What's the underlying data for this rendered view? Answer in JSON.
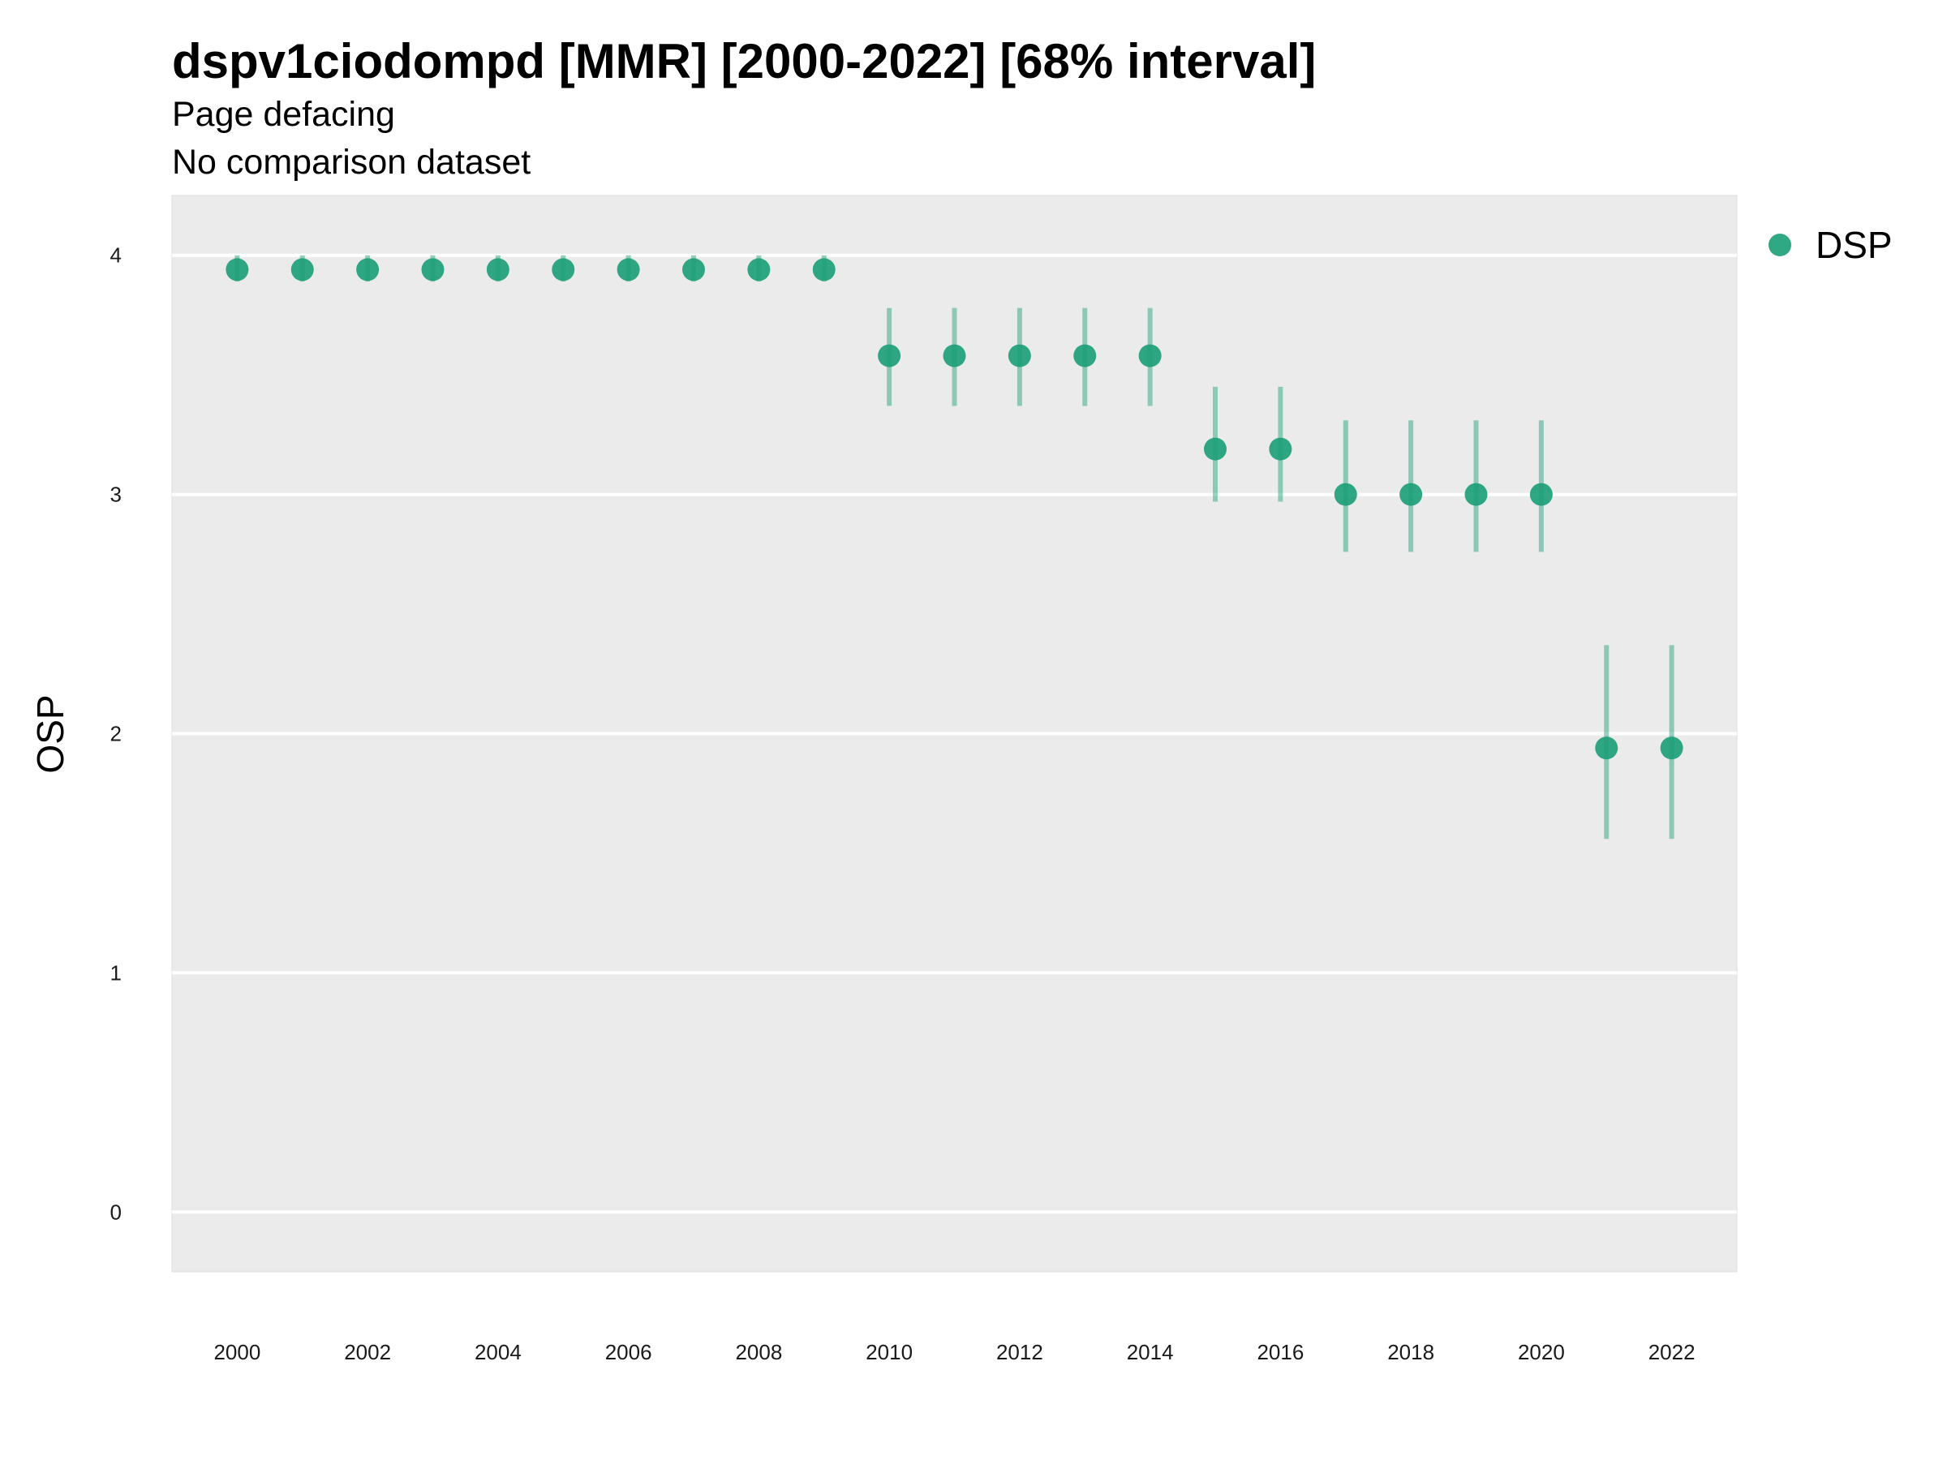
{
  "chart_data": {
    "type": "scatter",
    "title": "dspv1ciodompd [MMR] [2000-2022] [68% interval]",
    "subtitle": "Page defacing",
    "subtitle2": "No comparison dataset",
    "xlabel": "",
    "ylabel": "OSP",
    "x_ticks": [
      "2000",
      "2002",
      "2004",
      "2006",
      "2008",
      "2010",
      "2012",
      "2014",
      "2016",
      "2018",
      "2020",
      "2022"
    ],
    "y_ticks": [
      "0",
      "1",
      "2",
      "3",
      "4"
    ],
    "xlim": [
      1999,
      2023
    ],
    "ylim": [
      -0.25,
      4.25
    ],
    "grid": true,
    "legend_position": "right",
    "colors": {
      "series": "#1b9e77",
      "panel": "#ebebeb",
      "grid": "#ffffff"
    },
    "series": [
      {
        "name": "DSP",
        "x": [
          2000,
          2001,
          2002,
          2003,
          2004,
          2005,
          2006,
          2007,
          2008,
          2009,
          2010,
          2011,
          2012,
          2013,
          2014,
          2015,
          2016,
          2017,
          2018,
          2019,
          2020,
          2021,
          2022
        ],
        "y": [
          3.94,
          3.94,
          3.94,
          3.94,
          3.94,
          3.94,
          3.94,
          3.94,
          3.94,
          3.94,
          3.58,
          3.58,
          3.58,
          3.58,
          3.58,
          3.19,
          3.19,
          3.0,
          3.0,
          3.0,
          3.0,
          1.94,
          1.94
        ],
        "lower": [
          3.89,
          3.89,
          3.89,
          3.89,
          3.89,
          3.89,
          3.89,
          3.89,
          3.89,
          3.89,
          3.37,
          3.37,
          3.37,
          3.37,
          3.37,
          2.97,
          2.97,
          2.76,
          2.76,
          2.76,
          2.76,
          1.56,
          1.56
        ],
        "upper": [
          4.0,
          4.0,
          4.0,
          4.0,
          4.0,
          4.0,
          4.0,
          4.0,
          4.0,
          4.0,
          3.78,
          3.78,
          3.78,
          3.78,
          3.78,
          3.45,
          3.45,
          3.31,
          3.31,
          3.31,
          3.31,
          2.37,
          2.37
        ]
      }
    ]
  }
}
